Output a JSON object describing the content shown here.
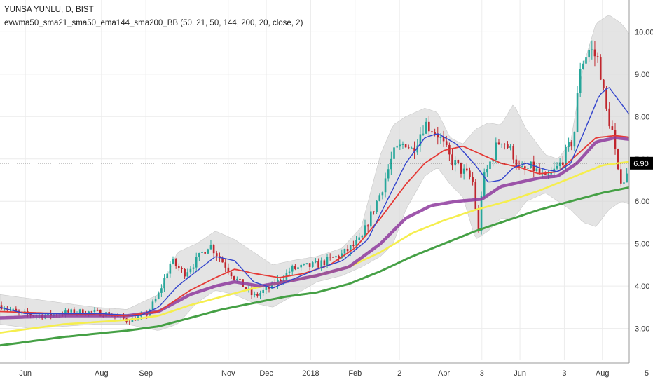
{
  "header": {
    "symbol": "YUNSA YUNLU, D, BIST",
    "study": "evwma50_sma21_sma50_ema144_sma200_BB (50, 21, 50, 144, 200, 20, close, 2)"
  },
  "chart_data": {
    "type": "line",
    "subtype": "candlestick with moving averages and Bollinger bands",
    "symbol": "YUNSA YUNLU",
    "interval": "D",
    "exchange": "BIST",
    "y_axis": {
      "side": "right",
      "ylim": [
        2.25,
        10.75
      ],
      "ticks": [
        3.0,
        4.0,
        5.0,
        6.0,
        7.0,
        8.0,
        9.0,
        10.0
      ],
      "tick_labels": [
        "3.00",
        "4.00",
        "5.00",
        "6.00",
        "7.00",
        "8.00",
        "9.00",
        "10.00"
      ]
    },
    "x_axis": {
      "ticks": [
        "Jun",
        "Aug",
        "Sep",
        "Nov",
        "Dec",
        "2018",
        "Feb",
        "2",
        "Apr",
        "3",
        "Jun",
        "3",
        "Aug",
        "5"
      ],
      "tick_t": [
        0.04,
        0.16,
        0.23,
        0.36,
        0.42,
        0.49,
        0.56,
        0.63,
        0.7,
        0.76,
        0.82,
        0.89,
        0.95,
        1.02
      ]
    },
    "last_price": {
      "value": 6.9,
      "label": "6.90",
      "color": "#000000"
    },
    "grid": true,
    "colors": {
      "up": "#26a69a",
      "down": "#c0262d",
      "bb_fill": "#d6d6d6",
      "sma21": "#3344cc",
      "sma50": "#e53935",
      "evwma50": "#8e3a9e",
      "ema144": "#f5ee4d",
      "sma200": "#45a045"
    },
    "series_keypoints": {
      "price_close": [
        [
          0.0,
          3.55
        ],
        [
          0.03,
          3.35
        ],
        [
          0.07,
          3.3
        ],
        [
          0.12,
          3.4
        ],
        [
          0.17,
          3.35
        ],
        [
          0.2,
          3.2
        ],
        [
          0.23,
          3.3
        ],
        [
          0.25,
          3.8
        ],
        [
          0.27,
          4.6
        ],
        [
          0.29,
          4.3
        ],
        [
          0.31,
          4.6
        ],
        [
          0.33,
          5.0
        ],
        [
          0.35,
          4.6
        ],
        [
          0.37,
          4.2
        ],
        [
          0.39,
          3.9
        ],
        [
          0.4,
          3.75
        ],
        [
          0.43,
          4.0
        ],
        [
          0.46,
          4.4
        ],
        [
          0.5,
          4.5
        ],
        [
          0.54,
          4.75
        ],
        [
          0.57,
          5.1
        ],
        [
          0.58,
          5.5
        ],
        [
          0.6,
          6.2
        ],
        [
          0.62,
          7.1
        ],
        [
          0.64,
          7.4
        ],
        [
          0.65,
          7.2
        ],
        [
          0.67,
          7.85
        ],
        [
          0.69,
          7.6
        ],
        [
          0.71,
          7.0
        ],
        [
          0.73,
          6.7
        ],
        [
          0.745,
          6.5
        ],
        [
          0.755,
          5.2
        ],
        [
          0.76,
          6.4
        ],
        [
          0.78,
          7.2
        ],
        [
          0.79,
          7.5
        ],
        [
          0.81,
          7.1
        ],
        [
          0.82,
          6.7
        ],
        [
          0.84,
          6.8
        ],
        [
          0.86,
          6.5
        ],
        [
          0.88,
          6.8
        ],
        [
          0.895,
          7.2
        ],
        [
          0.905,
          7.5
        ],
        [
          0.915,
          9.2
        ],
        [
          0.93,
          9.6
        ],
        [
          0.945,
          9.3
        ],
        [
          0.955,
          8.2
        ],
        [
          0.965,
          7.7
        ],
        [
          0.975,
          6.6
        ],
        [
          0.985,
          6.5
        ],
        [
          1.0,
          6.9
        ]
      ],
      "sma21": [
        [
          0.0,
          3.5
        ],
        [
          0.04,
          3.35
        ],
        [
          0.1,
          3.35
        ],
        [
          0.16,
          3.35
        ],
        [
          0.22,
          3.3
        ],
        [
          0.25,
          3.5
        ],
        [
          0.28,
          4.0
        ],
        [
          0.31,
          4.35
        ],
        [
          0.34,
          4.7
        ],
        [
          0.37,
          4.6
        ],
        [
          0.4,
          4.1
        ],
        [
          0.43,
          3.95
        ],
        [
          0.46,
          4.15
        ],
        [
          0.5,
          4.4
        ],
        [
          0.54,
          4.6
        ],
        [
          0.58,
          5.1
        ],
        [
          0.61,
          6.0
        ],
        [
          0.64,
          6.9
        ],
        [
          0.67,
          7.5
        ],
        [
          0.69,
          7.6
        ],
        [
          0.72,
          7.35
        ],
        [
          0.75,
          6.85
        ],
        [
          0.77,
          6.45
        ],
        [
          0.79,
          6.5
        ],
        [
          0.81,
          6.8
        ],
        [
          0.83,
          6.9
        ],
        [
          0.86,
          6.75
        ],
        [
          0.88,
          6.7
        ],
        [
          0.9,
          6.9
        ],
        [
          0.92,
          7.6
        ],
        [
          0.945,
          8.5
        ],
        [
          0.96,
          8.7
        ],
        [
          0.975,
          8.4
        ],
        [
          1.0,
          7.9
        ]
      ],
      "sma50": [
        [
          0.0,
          3.4
        ],
        [
          0.1,
          3.35
        ],
        [
          0.2,
          3.3
        ],
        [
          0.25,
          3.4
        ],
        [
          0.3,
          3.9
        ],
        [
          0.34,
          4.2
        ],
        [
          0.37,
          4.4
        ],
        [
          0.4,
          4.3
        ],
        [
          0.44,
          4.2
        ],
        [
          0.48,
          4.3
        ],
        [
          0.52,
          4.5
        ],
        [
          0.56,
          4.9
        ],
        [
          0.6,
          5.6
        ],
        [
          0.64,
          6.4
        ],
        [
          0.67,
          6.9
        ],
        [
          0.7,
          7.2
        ],
        [
          0.73,
          7.3
        ],
        [
          0.76,
          7.1
        ],
        [
          0.79,
          6.9
        ],
        [
          0.82,
          6.8
        ],
        [
          0.85,
          6.65
        ],
        [
          0.88,
          6.7
        ],
        [
          0.91,
          7.1
        ],
        [
          0.94,
          7.5
        ],
        [
          0.97,
          7.55
        ],
        [
          1.0,
          7.5
        ]
      ],
      "evwma50": [
        [
          0.0,
          3.25
        ],
        [
          0.1,
          3.3
        ],
        [
          0.2,
          3.3
        ],
        [
          0.25,
          3.4
        ],
        [
          0.3,
          3.8
        ],
        [
          0.34,
          4.0
        ],
        [
          0.37,
          4.1
        ],
        [
          0.41,
          4.0
        ],
        [
          0.45,
          4.1
        ],
        [
          0.5,
          4.25
        ],
        [
          0.55,
          4.45
        ],
        [
          0.6,
          5.0
        ],
        [
          0.64,
          5.6
        ],
        [
          0.68,
          5.9
        ],
        [
          0.72,
          6.0
        ],
        [
          0.76,
          6.05
        ],
        [
          0.79,
          6.35
        ],
        [
          0.82,
          6.45
        ],
        [
          0.85,
          6.55
        ],
        [
          0.88,
          6.6
        ],
        [
          0.91,
          6.9
        ],
        [
          0.94,
          7.4
        ],
        [
          0.97,
          7.5
        ],
        [
          1.0,
          7.45
        ]
      ],
      "ema144": [
        [
          0.0,
          2.9
        ],
        [
          0.1,
          3.1
        ],
        [
          0.2,
          3.2
        ],
        [
          0.25,
          3.3
        ],
        [
          0.3,
          3.55
        ],
        [
          0.35,
          3.75
        ],
        [
          0.4,
          3.95
        ],
        [
          0.45,
          4.1
        ],
        [
          0.5,
          4.25
        ],
        [
          0.55,
          4.45
        ],
        [
          0.6,
          4.8
        ],
        [
          0.65,
          5.25
        ],
        [
          0.7,
          5.55
        ],
        [
          0.75,
          5.8
        ],
        [
          0.8,
          6.0
        ],
        [
          0.85,
          6.25
        ],
        [
          0.9,
          6.55
        ],
        [
          0.95,
          6.85
        ],
        [
          1.0,
          6.95
        ]
      ],
      "sma200": [
        [
          0.0,
          2.6
        ],
        [
          0.1,
          2.8
        ],
        [
          0.2,
          2.95
        ],
        [
          0.25,
          3.05
        ],
        [
          0.3,
          3.25
        ],
        [
          0.35,
          3.45
        ],
        [
          0.4,
          3.6
        ],
        [
          0.45,
          3.75
        ],
        [
          0.5,
          3.85
        ],
        [
          0.55,
          4.05
        ],
        [
          0.6,
          4.35
        ],
        [
          0.65,
          4.7
        ],
        [
          0.7,
          5.0
        ],
        [
          0.75,
          5.3
        ],
        [
          0.8,
          5.55
        ],
        [
          0.85,
          5.8
        ],
        [
          0.9,
          6.0
        ],
        [
          0.95,
          6.2
        ],
        [
          1.0,
          6.35
        ]
      ],
      "bb_upper": [
        [
          0.0,
          3.8
        ],
        [
          0.05,
          3.7
        ],
        [
          0.1,
          3.6
        ],
        [
          0.15,
          3.5
        ],
        [
          0.2,
          3.45
        ],
        [
          0.25,
          3.8
        ],
        [
          0.28,
          4.8
        ],
        [
          0.31,
          5.0
        ],
        [
          0.34,
          5.3
        ],
        [
          0.37,
          5.1
        ],
        [
          0.4,
          4.8
        ],
        [
          0.43,
          4.5
        ],
        [
          0.46,
          4.6
        ],
        [
          0.5,
          4.7
        ],
        [
          0.54,
          4.9
        ],
        [
          0.57,
          5.4
        ],
        [
          0.6,
          7.1
        ],
        [
          0.62,
          7.8
        ],
        [
          0.64,
          8.0
        ],
        [
          0.67,
          8.2
        ],
        [
          0.69,
          8.1
        ],
        [
          0.71,
          7.5
        ],
        [
          0.73,
          7.35
        ],
        [
          0.75,
          7.7
        ],
        [
          0.77,
          7.85
        ],
        [
          0.79,
          7.8
        ],
        [
          0.81,
          8.3
        ],
        [
          0.83,
          7.7
        ],
        [
          0.86,
          7.1
        ],
        [
          0.88,
          7.0
        ],
        [
          0.9,
          7.4
        ],
        [
          0.92,
          9.2
        ],
        [
          0.94,
          10.2
        ],
        [
          0.96,
          10.4
        ],
        [
          0.98,
          10.2
        ],
        [
          1.0,
          9.8
        ]
      ],
      "bb_lower": [
        [
          0.0,
          3.1
        ],
        [
          0.05,
          3.0
        ],
        [
          0.1,
          3.05
        ],
        [
          0.15,
          3.1
        ],
        [
          0.2,
          3.1
        ],
        [
          0.25,
          2.95
        ],
        [
          0.28,
          3.1
        ],
        [
          0.31,
          3.6
        ],
        [
          0.34,
          3.9
        ],
        [
          0.37,
          3.8
        ],
        [
          0.4,
          3.6
        ],
        [
          0.43,
          3.5
        ],
        [
          0.46,
          3.75
        ],
        [
          0.5,
          4.1
        ],
        [
          0.54,
          4.25
        ],
        [
          0.57,
          4.45
        ],
        [
          0.6,
          4.7
        ],
        [
          0.62,
          5.0
        ],
        [
          0.64,
          5.8
        ],
        [
          0.67,
          6.6
        ],
        [
          0.69,
          6.8
        ],
        [
          0.71,
          6.4
        ],
        [
          0.73,
          6.1
        ],
        [
          0.75,
          5.1
        ],
        [
          0.77,
          5.3
        ],
        [
          0.79,
          5.6
        ],
        [
          0.81,
          5.6
        ],
        [
          0.83,
          6.0
        ],
        [
          0.86,
          6.2
        ],
        [
          0.88,
          6.0
        ],
        [
          0.9,
          5.8
        ],
        [
          0.92,
          5.5
        ],
        [
          0.94,
          5.4
        ],
        [
          0.96,
          5.8
        ],
        [
          0.98,
          6.0
        ],
        [
          1.0,
          5.9
        ]
      ]
    }
  }
}
